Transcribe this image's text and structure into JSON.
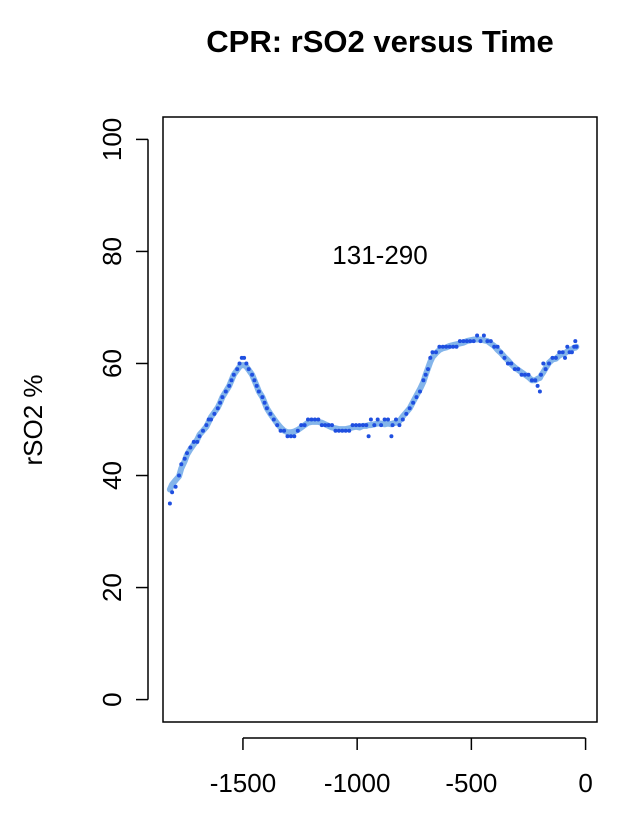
{
  "chart_data": {
    "type": "scatter",
    "title": "CPR: rSO2 versus Time",
    "xlabel": "",
    "ylabel": "rSO2 %",
    "annotation": "131-290",
    "xlim": [
      -1850,
      50
    ],
    "ylim": [
      -4,
      104
    ],
    "x_ticks": [
      -1500,
      -1000,
      -500,
      0
    ],
    "y_ticks": [
      0,
      20,
      40,
      60,
      80,
      100
    ],
    "grid": false,
    "point_color": "#1f4fe0",
    "smooth_color": "#6fa8e6",
    "series": [
      {
        "points": [
          [
            -1820,
            35
          ],
          [
            -1810,
            37
          ],
          [
            -1795,
            38
          ],
          [
            -1780,
            40
          ],
          [
            -1770,
            42
          ],
          [
            -1755,
            43
          ],
          [
            -1745,
            44
          ],
          [
            -1730,
            45
          ],
          [
            -1715,
            46
          ],
          [
            -1700,
            46
          ],
          [
            -1690,
            47
          ],
          [
            -1675,
            48
          ],
          [
            -1660,
            49
          ],
          [
            -1650,
            50
          ],
          [
            -1640,
            50
          ],
          [
            -1625,
            51
          ],
          [
            -1610,
            52
          ],
          [
            -1600,
            53
          ],
          [
            -1590,
            54
          ],
          [
            -1575,
            55
          ],
          [
            -1560,
            56
          ],
          [
            -1550,
            57
          ],
          [
            -1540,
            58
          ],
          [
            -1525,
            59
          ],
          [
            -1515,
            60
          ],
          [
            -1505,
            61
          ],
          [
            -1495,
            61
          ],
          [
            -1485,
            60
          ],
          [
            -1475,
            59
          ],
          [
            -1460,
            58
          ],
          [
            -1450,
            57
          ],
          [
            -1440,
            56
          ],
          [
            -1430,
            55
          ],
          [
            -1415,
            54
          ],
          [
            -1405,
            53
          ],
          [
            -1395,
            52
          ],
          [
            -1380,
            51
          ],
          [
            -1365,
            50
          ],
          [
            -1350,
            49
          ],
          [
            -1335,
            48
          ],
          [
            -1320,
            48
          ],
          [
            -1305,
            47
          ],
          [
            -1290,
            47
          ],
          [
            -1275,
            47
          ],
          [
            -1260,
            48
          ],
          [
            -1245,
            49
          ],
          [
            -1230,
            49
          ],
          [
            -1215,
            50
          ],
          [
            -1200,
            50
          ],
          [
            -1185,
            50
          ],
          [
            -1170,
            50
          ],
          [
            -1155,
            49
          ],
          [
            -1140,
            49
          ],
          [
            -1125,
            49
          ],
          [
            -1110,
            49
          ],
          [
            -1095,
            48
          ],
          [
            -1080,
            48
          ],
          [
            -1065,
            48
          ],
          [
            -1050,
            48
          ],
          [
            -1035,
            48
          ],
          [
            -1020,
            49
          ],
          [
            -1005,
            49
          ],
          [
            -990,
            49
          ],
          [
            -975,
            49
          ],
          [
            -960,
            49
          ],
          [
            -950,
            47
          ],
          [
            -940,
            50
          ],
          [
            -925,
            49
          ],
          [
            -910,
            50
          ],
          [
            -895,
            49
          ],
          [
            -880,
            50
          ],
          [
            -865,
            50
          ],
          [
            -850,
            47
          ],
          [
            -845,
            49
          ],
          [
            -830,
            50
          ],
          [
            -815,
            49
          ],
          [
            -800,
            50
          ],
          [
            -785,
            51
          ],
          [
            -770,
            52
          ],
          [
            -755,
            53
          ],
          [
            -740,
            54
          ],
          [
            -725,
            55
          ],
          [
            -710,
            57
          ],
          [
            -700,
            58
          ],
          [
            -690,
            59
          ],
          [
            -680,
            61
          ],
          [
            -670,
            62
          ],
          [
            -655,
            62
          ],
          [
            -640,
            63
          ],
          [
            -625,
            63
          ],
          [
            -610,
            63
          ],
          [
            -595,
            63
          ],
          [
            -580,
            63
          ],
          [
            -565,
            63
          ],
          [
            -550,
            64
          ],
          [
            -535,
            64
          ],
          [
            -520,
            64
          ],
          [
            -505,
            64
          ],
          [
            -490,
            64
          ],
          [
            -475,
            65
          ],
          [
            -460,
            64
          ],
          [
            -445,
            65
          ],
          [
            -430,
            64
          ],
          [
            -415,
            64
          ],
          [
            -400,
            63
          ],
          [
            -385,
            63
          ],
          [
            -370,
            62
          ],
          [
            -355,
            61
          ],
          [
            -340,
            60
          ],
          [
            -325,
            60
          ],
          [
            -310,
            59
          ],
          [
            -295,
            59
          ],
          [
            -280,
            58
          ],
          [
            -265,
            58
          ],
          [
            -250,
            58
          ],
          [
            -235,
            57
          ],
          [
            -220,
            57
          ],
          [
            -210,
            56
          ],
          [
            -200,
            55
          ],
          [
            -195,
            58
          ],
          [
            -185,
            60
          ],
          [
            -175,
            59
          ],
          [
            -160,
            60
          ],
          [
            -145,
            61
          ],
          [
            -130,
            61
          ],
          [
            -115,
            62
          ],
          [
            -100,
            62
          ],
          [
            -90,
            61
          ],
          [
            -80,
            63
          ],
          [
            -70,
            62
          ],
          [
            -60,
            62
          ],
          [
            -50,
            63
          ],
          [
            -45,
            64
          ],
          [
            -40,
            63
          ]
        ]
      }
    ]
  }
}
